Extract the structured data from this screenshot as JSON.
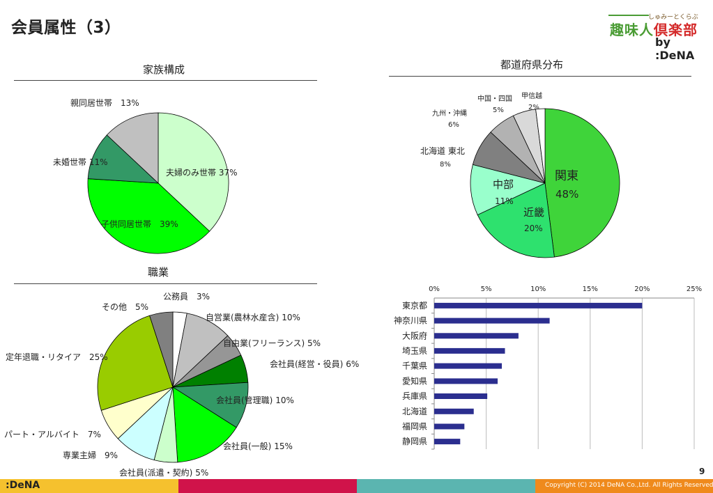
{
  "page": {
    "title": "会員属性（3）",
    "page_number": "9",
    "copyright": "Copyright (C) 2014 DeNA Co.,Ltd. All Rights Reserved.",
    "footer_logo": ":DeNA"
  },
  "logo": {
    "tagline": "しゅみーとくらぶ",
    "name_part1": "趣味人",
    "name_part2": "倶楽部",
    "by": "by :DeNA"
  },
  "colors": {
    "footer_yellow": "#f5c12e",
    "footer_crimson": "#d0134a",
    "footer_teal": "#5bb5b0",
    "footer_orange": "#ef8a1c",
    "bar_color": "#2b2e8f"
  },
  "chart_data": [
    {
      "type": "pie",
      "title": "家族構成",
      "slices": [
        {
          "label": "夫婦のみ世帯",
          "value": 37,
          "display": "37%",
          "color": "#ccffcc"
        },
        {
          "label": "子供同居世帯",
          "value": 39,
          "display": "39%",
          "color": "#00ff00"
        },
        {
          "label": "未婚世帯",
          "value": 11,
          "display": "11%",
          "color": "#339966"
        },
        {
          "label": "親同居世帯",
          "value": 13,
          "display": "13%",
          "color": "#c0c0c0"
        }
      ]
    },
    {
      "type": "pie",
      "title": "都道府県分布",
      "slices": [
        {
          "label": "関東",
          "value": 48,
          "display": "48%",
          "color": "#3fd43a"
        },
        {
          "label": "近畿",
          "value": 20,
          "display": "20%",
          "color": "#2ee16e"
        },
        {
          "label": "中部",
          "value": 11,
          "display": "11%",
          "color": "#99ffcc"
        },
        {
          "label": "北海道 東北",
          "value": 8,
          "display": "8%",
          "color": "#808080"
        },
        {
          "label": "九州・沖縄",
          "value": 6,
          "display": "6%",
          "color": "#b2b2b2"
        },
        {
          "label": "中国・四国",
          "value": 5,
          "display": "5%",
          "color": "#d9d9d9"
        },
        {
          "label": "甲信越",
          "value": 2,
          "display": "2%",
          "color": "#ffffff"
        }
      ]
    },
    {
      "type": "pie",
      "title": "職業",
      "slices": [
        {
          "label": "公務員",
          "value": 3,
          "display": "3%",
          "color": "#ffffff"
        },
        {
          "label": "自営業(農林水産含)",
          "value": 10,
          "display": "10%",
          "color": "#c0c0c0"
        },
        {
          "label": "自由業(フリーランス)",
          "value": 5,
          "display": "5%",
          "color": "#969696"
        },
        {
          "label": "会社員(経営・役員)",
          "value": 6,
          "display": "6%",
          "color": "#008000"
        },
        {
          "label": "会社員(管理職)",
          "value": 10,
          "display": "10%",
          "color": "#339966"
        },
        {
          "label": "会社員(一般)",
          "value": 15,
          "display": "15%",
          "color": "#00ff00"
        },
        {
          "label": "会社員(派遣・契約)",
          "value": 5,
          "display": "5%",
          "color": "#ccffcc"
        },
        {
          "label": "専業主婦",
          "value": 9,
          "display": "9%",
          "color": "#ccffff"
        },
        {
          "label": "パート・アルバイト",
          "value": 7,
          "display": "7%",
          "color": "#ffffcc"
        },
        {
          "label": "定年退職・リタイア",
          "value": 25,
          "display": "25%",
          "color": "#99cc00"
        },
        {
          "label": "その他",
          "value": 5,
          "display": "5%",
          "color": "#808080"
        }
      ]
    },
    {
      "type": "bar",
      "orientation": "horizontal",
      "categories": [
        "東京都",
        "神奈川県",
        "大阪府",
        "埼玉県",
        "千葉県",
        "愛知県",
        "兵庫県",
        "北海道",
        "福岡県",
        "静岡県"
      ],
      "values": [
        20.0,
        11.1,
        8.1,
        6.8,
        6.5,
        6.1,
        5.1,
        3.8,
        2.9,
        2.5
      ],
      "xlim": [
        0,
        25
      ],
      "xticks": [
        "0%",
        "5%",
        "10%",
        "15%",
        "20%",
        "25%"
      ],
      "grid": true,
      "axis_position": "top"
    }
  ]
}
